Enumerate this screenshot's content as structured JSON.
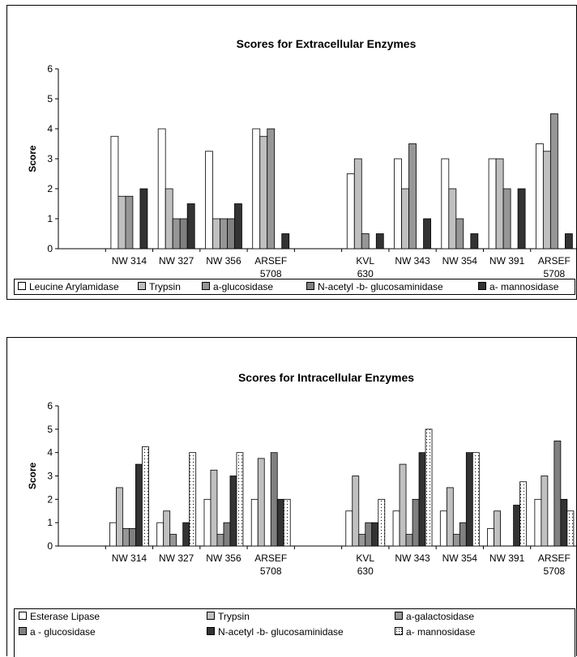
{
  "charts": [
    {
      "type": "bar",
      "title": "Scores for Extracellular Enzymes",
      "ylabel": "Score",
      "ylim": [
        0,
        6
      ],
      "yticks": [
        0,
        1,
        2,
        3,
        4,
        5,
        6
      ],
      "categories": [
        [
          "NW 314"
        ],
        [
          "NW 327"
        ],
        [
          "NW 356"
        ],
        [
          "ARSEF",
          "5708"
        ],
        [
          ""
        ],
        [
          "KVL",
          "630"
        ],
        [
          "NW 343"
        ],
        [
          "NW 354"
        ],
        [
          "NW 391"
        ],
        [
          "ARSEF",
          "5708"
        ]
      ],
      "series": [
        {
          "name": "Leucine Arylamidase",
          "fill": "#ffffff",
          "values": [
            3.75,
            4,
            3.25,
            4,
            null,
            2.5,
            3,
            3,
            3,
            3.5
          ]
        },
        {
          "name": "Trypsin",
          "fill": "#c0c0c0",
          "values": [
            1.75,
            2,
            1,
            3.75,
            null,
            3,
            2,
            2,
            3,
            3.25
          ]
        },
        {
          "name": "a-glucosidase",
          "fill": "#969696",
          "values": [
            1.75,
            1,
            1,
            4,
            null,
            0.5,
            3.5,
            1,
            2,
            4.5
          ]
        },
        {
          "name": "N-acetyl -b- glucosaminidase",
          "fill": "#808080",
          "values": [
            null,
            1,
            1,
            null,
            null,
            null,
            null,
            null,
            null,
            null
          ]
        },
        {
          "name": "a- mannosidase",
          "fill": "#333333",
          "values": [
            2,
            1.5,
            1.5,
            0.5,
            null,
            0.5,
            1,
            0.5,
            2,
            0.5
          ]
        }
      ],
      "legend_position": "bottom"
    },
    {
      "type": "bar",
      "title": "Scores for Intracellular Enzymes",
      "ylabel": "Score",
      "ylim": [
        0,
        6
      ],
      "yticks": [
        0,
        1,
        2,
        3,
        4,
        5,
        6
      ],
      "categories": [
        [
          "NW 314"
        ],
        [
          "NW 327"
        ],
        [
          "NW 356"
        ],
        [
          "ARSEF",
          "5708"
        ],
        [
          ""
        ],
        [
          "KVL",
          "630"
        ],
        [
          "NW 343"
        ],
        [
          "NW 354"
        ],
        [
          "NW 391"
        ],
        [
          "ARSEF",
          "5708"
        ]
      ],
      "series": [
        {
          "name": "Esterase Lipase",
          "fill": "#ffffff",
          "values": [
            1,
            1,
            2,
            2,
            null,
            1.5,
            1.5,
            1.5,
            0.75,
            2
          ]
        },
        {
          "name": "Trypsin",
          "fill": "#c0c0c0",
          "values": [
            2.5,
            1.5,
            3.25,
            3.75,
            null,
            3,
            3.5,
            2.5,
            1.5,
            3
          ]
        },
        {
          "name": "a-galactosidase",
          "fill": "#969696",
          "values": [
            0.75,
            0.5,
            0.5,
            null,
            null,
            0.5,
            0.5,
            0.5,
            null,
            null
          ]
        },
        {
          "name": "a - glucosidase",
          "fill": "#808080",
          "values": [
            0.75,
            null,
            1,
            4,
            null,
            1,
            2,
            1,
            null,
            4.5
          ]
        },
        {
          "name": "N-acetyl -b- glucosaminidase",
          "fill": "#333333",
          "values": [
            3.5,
            1,
            3,
            2,
            null,
            1,
            4,
            4,
            1.75,
            2
          ]
        },
        {
          "name": "a- mannosidase",
          "fill": "dotted",
          "values": [
            4.25,
            4,
            4,
            2,
            null,
            2,
            5,
            4,
            2.75,
            1.5
          ]
        }
      ],
      "legend_position": "bottom"
    }
  ]
}
